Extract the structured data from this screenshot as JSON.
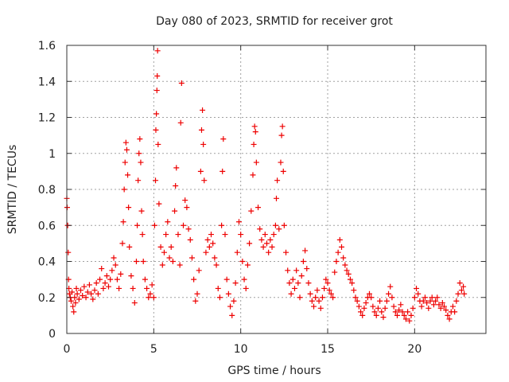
{
  "chart_data": {
    "type": "scatter",
    "title": "Day 080 of 2023, SRMTID for receiver grot",
    "xlabel": "GPS time / hours",
    "ylabel": "SRMTID / TECUs",
    "xlim": [
      0,
      24.1
    ],
    "ylim": [
      0,
      1.6
    ],
    "x_ticks": [
      0,
      5,
      10,
      15,
      20
    ],
    "x_tick_labels": [
      "0",
      "5",
      "10",
      "15",
      "20"
    ],
    "y_ticks": [
      0,
      0.2,
      0.4,
      0.6,
      0.8,
      1.0,
      1.2,
      1.4,
      1.6
    ],
    "y_tick_labels": [
      "0",
      "0.2",
      "0.4",
      "0.6",
      "0.8",
      "1",
      "1.2",
      "1.4",
      "1.6"
    ],
    "grid": true,
    "marker": "+",
    "series": [
      {
        "name": "SRMTID",
        "color": "#ee0000",
        "points": [
          [
            0.0,
            0.75
          ],
          [
            0.02,
            0.7
          ],
          [
            0.05,
            0.6
          ],
          [
            0.08,
            0.45
          ],
          [
            0.1,
            0.3
          ],
          [
            0.12,
            0.25
          ],
          [
            0.15,
            0.22
          ],
          [
            0.2,
            0.2
          ],
          [
            0.25,
            0.18
          ],
          [
            0.3,
            0.23
          ],
          [
            0.35,
            0.15
          ],
          [
            0.4,
            0.12
          ],
          [
            0.45,
            0.2
          ],
          [
            0.5,
            0.17
          ],
          [
            0.55,
            0.25
          ],
          [
            0.6,
            0.22
          ],
          [
            0.7,
            0.19
          ],
          [
            0.8,
            0.24
          ],
          [
            0.9,
            0.21
          ],
          [
            1.0,
            0.26
          ],
          [
            1.1,
            0.2
          ],
          [
            1.2,
            0.23
          ],
          [
            1.3,
            0.27
          ],
          [
            1.4,
            0.22
          ],
          [
            1.5,
            0.19
          ],
          [
            1.6,
            0.24
          ],
          [
            1.7,
            0.28
          ],
          [
            1.8,
            0.22
          ],
          [
            1.9,
            0.3
          ],
          [
            2.0,
            0.36
          ],
          [
            2.1,
            0.25
          ],
          [
            2.2,
            0.28
          ],
          [
            2.3,
            0.32
          ],
          [
            2.4,
            0.26
          ],
          [
            2.5,
            0.3
          ],
          [
            2.6,
            0.35
          ],
          [
            2.7,
            0.42
          ],
          [
            2.8,
            0.38
          ],
          [
            2.9,
            0.3
          ],
          [
            3.0,
            0.25
          ],
          [
            3.1,
            0.33
          ],
          [
            3.2,
            0.5
          ],
          [
            3.25,
            0.62
          ],
          [
            3.3,
            0.8
          ],
          [
            3.35,
            0.95
          ],
          [
            3.4,
            1.06
          ],
          [
            3.45,
            1.02
          ],
          [
            3.5,
            0.88
          ],
          [
            3.55,
            0.7
          ],
          [
            3.6,
            0.48
          ],
          [
            3.7,
            0.32
          ],
          [
            3.8,
            0.25
          ],
          [
            3.9,
            0.17
          ],
          [
            4.0,
            0.4
          ],
          [
            4.05,
            0.6
          ],
          [
            4.1,
            0.85
          ],
          [
            4.15,
            1.0
          ],
          [
            4.2,
            1.08
          ],
          [
            4.25,
            0.95
          ],
          [
            4.3,
            0.68
          ],
          [
            4.35,
            0.55
          ],
          [
            4.4,
            0.4
          ],
          [
            4.5,
            0.3
          ],
          [
            4.6,
            0.25
          ],
          [
            4.7,
            0.2
          ],
          [
            4.8,
            0.22
          ],
          [
            4.9,
            0.27
          ],
          [
            5.0,
            0.2
          ],
          [
            5.05,
            0.6
          ],
          [
            5.1,
            0.85
          ],
          [
            5.12,
            1.13
          ],
          [
            5.15,
            1.22
          ],
          [
            5.18,
            1.35
          ],
          [
            5.2,
            1.43
          ],
          [
            5.22,
            1.57
          ],
          [
            5.25,
            1.05
          ],
          [
            5.3,
            0.72
          ],
          [
            5.4,
            0.48
          ],
          [
            5.5,
            0.38
          ],
          [
            5.6,
            0.45
          ],
          [
            5.7,
            0.55
          ],
          [
            5.8,
            0.62
          ],
          [
            5.9,
            0.42
          ],
          [
            6.0,
            0.48
          ],
          [
            6.1,
            0.4
          ],
          [
            6.2,
            0.68
          ],
          [
            6.25,
            0.82
          ],
          [
            6.3,
            0.92
          ],
          [
            6.4,
            0.55
          ],
          [
            6.5,
            0.38
          ],
          [
            6.55,
            1.17
          ],
          [
            6.6,
            1.39
          ],
          [
            6.7,
            0.6
          ],
          [
            6.8,
            0.74
          ],
          [
            6.9,
            0.7
          ],
          [
            7.0,
            0.58
          ],
          [
            7.1,
            0.52
          ],
          [
            7.2,
            0.42
          ],
          [
            7.3,
            0.3
          ],
          [
            7.4,
            0.18
          ],
          [
            7.5,
            0.22
          ],
          [
            7.6,
            0.35
          ],
          [
            7.7,
            0.9
          ],
          [
            7.75,
            1.13
          ],
          [
            7.8,
            1.24
          ],
          [
            7.85,
            1.05
          ],
          [
            7.9,
            0.85
          ],
          [
            8.0,
            0.45
          ],
          [
            8.1,
            0.52
          ],
          [
            8.2,
            0.48
          ],
          [
            8.3,
            0.55
          ],
          [
            8.4,
            0.5
          ],
          [
            8.5,
            0.42
          ],
          [
            8.6,
            0.38
          ],
          [
            8.7,
            0.25
          ],
          [
            8.8,
            0.2
          ],
          [
            8.9,
            0.6
          ],
          [
            8.95,
            0.9
          ],
          [
            9.0,
            1.08
          ],
          [
            9.1,
            0.55
          ],
          [
            9.2,
            0.3
          ],
          [
            9.3,
            0.22
          ],
          [
            9.4,
            0.15
          ],
          [
            9.5,
            0.1
          ],
          [
            9.6,
            0.18
          ],
          [
            9.7,
            0.28
          ],
          [
            9.8,
            0.45
          ],
          [
            9.9,
            0.62
          ],
          [
            10.0,
            0.55
          ],
          [
            10.1,
            0.4
          ],
          [
            10.2,
            0.3
          ],
          [
            10.3,
            0.25
          ],
          [
            10.4,
            0.38
          ],
          [
            10.5,
            0.5
          ],
          [
            10.6,
            0.68
          ],
          [
            10.7,
            0.88
          ],
          [
            10.75,
            1.05
          ],
          [
            10.8,
            1.15
          ],
          [
            10.85,
            1.12
          ],
          [
            10.9,
            0.95
          ],
          [
            11.0,
            0.7
          ],
          [
            11.1,
            0.58
          ],
          [
            11.2,
            0.52
          ],
          [
            11.3,
            0.48
          ],
          [
            11.4,
            0.55
          ],
          [
            11.5,
            0.5
          ],
          [
            11.6,
            0.45
          ],
          [
            11.7,
            0.52
          ],
          [
            11.8,
            0.48
          ],
          [
            11.9,
            0.55
          ],
          [
            12.0,
            0.6
          ],
          [
            12.05,
            0.75
          ],
          [
            12.1,
            0.85
          ],
          [
            12.2,
            0.58
          ],
          [
            12.3,
            0.95
          ],
          [
            12.35,
            1.1
          ],
          [
            12.4,
            1.15
          ],
          [
            12.45,
            0.9
          ],
          [
            12.5,
            0.6
          ],
          [
            12.6,
            0.45
          ],
          [
            12.7,
            0.35
          ],
          [
            12.8,
            0.28
          ],
          [
            12.9,
            0.22
          ],
          [
            13.0,
            0.3
          ],
          [
            13.1,
            0.25
          ],
          [
            13.2,
            0.35
          ],
          [
            13.3,
            0.28
          ],
          [
            13.4,
            0.2
          ],
          [
            13.5,
            0.32
          ],
          [
            13.6,
            0.4
          ],
          [
            13.7,
            0.46
          ],
          [
            13.8,
            0.36
          ],
          [
            13.9,
            0.28
          ],
          [
            14.0,
            0.22
          ],
          [
            14.1,
            0.18
          ],
          [
            14.2,
            0.15
          ],
          [
            14.3,
            0.2
          ],
          [
            14.4,
            0.24
          ],
          [
            14.5,
            0.18
          ],
          [
            14.6,
            0.14
          ],
          [
            14.7,
            0.2
          ],
          [
            14.8,
            0.25
          ],
          [
            14.9,
            0.3
          ],
          [
            15.0,
            0.28
          ],
          [
            15.1,
            0.24
          ],
          [
            15.2,
            0.22
          ],
          [
            15.3,
            0.2
          ],
          [
            15.4,
            0.34
          ],
          [
            15.5,
            0.4
          ],
          [
            15.6,
            0.45
          ],
          [
            15.7,
            0.52
          ],
          [
            15.8,
            0.48
          ],
          [
            15.9,
            0.42
          ],
          [
            16.0,
            0.38
          ],
          [
            16.1,
            0.35
          ],
          [
            16.2,
            0.33
          ],
          [
            16.3,
            0.3
          ],
          [
            16.4,
            0.28
          ],
          [
            16.5,
            0.24
          ],
          [
            16.6,
            0.2
          ],
          [
            16.7,
            0.18
          ],
          [
            16.8,
            0.15
          ],
          [
            16.9,
            0.12
          ],
          [
            17.0,
            0.1
          ],
          [
            17.1,
            0.14
          ],
          [
            17.2,
            0.17
          ],
          [
            17.3,
            0.2
          ],
          [
            17.4,
            0.22
          ],
          [
            17.5,
            0.2
          ],
          [
            17.6,
            0.15
          ],
          [
            17.7,
            0.12
          ],
          [
            17.8,
            0.1
          ],
          [
            17.9,
            0.14
          ],
          [
            18.0,
            0.18
          ],
          [
            18.1,
            0.12
          ],
          [
            18.2,
            0.09
          ],
          [
            18.3,
            0.14
          ],
          [
            18.4,
            0.18
          ],
          [
            18.5,
            0.22
          ],
          [
            18.6,
            0.26
          ],
          [
            18.7,
            0.2
          ],
          [
            18.8,
            0.15
          ],
          [
            18.9,
            0.12
          ],
          [
            19.0,
            0.1
          ],
          [
            19.1,
            0.13
          ],
          [
            19.2,
            0.16
          ],
          [
            19.3,
            0.12
          ],
          [
            19.4,
            0.1
          ],
          [
            19.5,
            0.08
          ],
          [
            19.6,
            0.12
          ],
          [
            19.7,
            0.07
          ],
          [
            19.8,
            0.1
          ],
          [
            19.9,
            0.14
          ],
          [
            20.0,
            0.2
          ],
          [
            20.1,
            0.25
          ],
          [
            20.2,
            0.22
          ],
          [
            20.3,
            0.18
          ],
          [
            20.4,
            0.15
          ],
          [
            20.5,
            0.18
          ],
          [
            20.6,
            0.2
          ],
          [
            20.7,
            0.17
          ],
          [
            20.8,
            0.14
          ],
          [
            20.9,
            0.18
          ],
          [
            21.0,
            0.2
          ],
          [
            21.1,
            0.16
          ],
          [
            21.2,
            0.18
          ],
          [
            21.3,
            0.2
          ],
          [
            21.4,
            0.16
          ],
          [
            21.5,
            0.14
          ],
          [
            21.6,
            0.17
          ],
          [
            21.7,
            0.15
          ],
          [
            21.8,
            0.13
          ],
          [
            21.9,
            0.1
          ],
          [
            22.0,
            0.08
          ],
          [
            22.1,
            0.12
          ],
          [
            22.2,
            0.15
          ],
          [
            22.3,
            0.12
          ],
          [
            22.4,
            0.18
          ],
          [
            22.5,
            0.22
          ],
          [
            22.6,
            0.28
          ],
          [
            22.7,
            0.24
          ],
          [
            22.8,
            0.26
          ],
          [
            22.85,
            0.22
          ]
        ]
      }
    ]
  }
}
